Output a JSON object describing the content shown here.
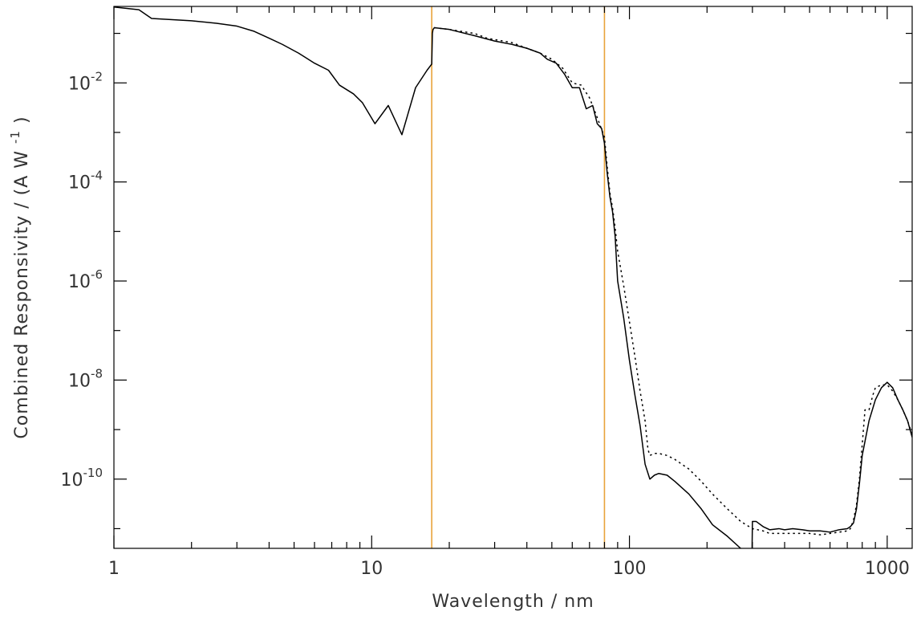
{
  "chart_data": {
    "type": "line",
    "title": "",
    "xlabel": "Wavelength / nm",
    "ylabel": {
      "prefix": "Combined Responsivity / (A W",
      "exponent": "-1",
      "suffix": ")"
    },
    "xscale": "log",
    "yscale": "log",
    "xlim": [
      1,
      1250
    ],
    "ylim": [
      4e-12,
      0.35
    ],
    "x_ticks": [
      {
        "value": 1,
        "label": "1"
      },
      {
        "value": 10,
        "label": "10"
      },
      {
        "value": 100,
        "label": "100"
      },
      {
        "value": 1000,
        "label": "1000"
      }
    ],
    "y_ticks": [
      {
        "value": 0.01,
        "base": "10",
        "exp": "-2"
      },
      {
        "value": 0.0001,
        "base": "10",
        "exp": "-4"
      },
      {
        "value": 1e-06,
        "base": "10",
        "exp": "-6"
      },
      {
        "value": 1e-08,
        "base": "10",
        "exp": "-8"
      },
      {
        "value": 1e-10,
        "base": "10",
        "exp": "-10"
      }
    ],
    "y_minor_ticks": [
      0.1,
      0.001,
      1e-05,
      1e-07,
      1e-09,
      1e-11
    ],
    "grid": false,
    "vlines": [
      {
        "x": 17.1,
        "color": "#e8a33a"
      },
      {
        "x": 80,
        "color": "#e8a33a"
      }
    ],
    "series": [
      {
        "style": "solid",
        "color": "#000000",
        "x": [
          1,
          1.25,
          1.4,
          2,
          2.5,
          3,
          3.5,
          4,
          4.5,
          5.2,
          6,
          6.8,
          7.5,
          8.5,
          9.2,
          10.3,
          11.6,
          13.1,
          14.8,
          16.4,
          17.1,
          17.2,
          17.3,
          17.5,
          20,
          25,
          30,
          35,
          40,
          45,
          48,
          52,
          56,
          60,
          64,
          68,
          72,
          75,
          78,
          80,
          82,
          84,
          86,
          88,
          90,
          95,
          100,
          105,
          110,
          115,
          120,
          125,
          130,
          140,
          150,
          170,
          190,
          210,
          240,
          270,
          290,
          299,
          300,
          310,
          330,
          350,
          380,
          400,
          430,
          470,
          500,
          550,
          600,
          650,
          700,
          720,
          740,
          760,
          780,
          800,
          850,
          900,
          950,
          1000,
          1050,
          1100,
          1150,
          1200,
          1250
        ],
        "y": [
          0.34,
          0.3,
          0.2,
          0.18,
          0.16,
          0.14,
          0.11,
          0.08,
          0.06,
          0.04,
          0.025,
          0.018,
          0.009,
          0.006,
          0.004,
          0.0015,
          0.0035,
          0.0009,
          0.008,
          0.018,
          0.024,
          0.1,
          0.12,
          0.13,
          0.12,
          0.09,
          0.07,
          0.06,
          0.05,
          0.04,
          0.03,
          0.025,
          0.015,
          0.008,
          0.008,
          0.003,
          0.0035,
          0.0015,
          0.0012,
          0.0006,
          0.00015,
          5e-05,
          2.5e-05,
          8e-06,
          1e-06,
          1.8e-07,
          2.5e-08,
          5e-09,
          1.2e-09,
          2e-10,
          1e-10,
          1.2e-10,
          1.3e-10,
          1.2e-10,
          9e-11,
          5e-11,
          2.5e-11,
          1.2e-11,
          7e-12,
          4e-12,
          3.5e-12,
          3.5e-12,
          1.4e-11,
          1.4e-11,
          1.1e-11,
          9.5e-12,
          1e-11,
          9.5e-12,
          1e-11,
          9.5e-12,
          9e-12,
          9e-12,
          8.5e-12,
          9.5e-12,
          1e-11,
          1.1e-11,
          1.3e-11,
          2.5e-11,
          8e-11,
          3e-10,
          1.5e-09,
          4e-09,
          7e-09,
          9e-09,
          7e-09,
          4e-09,
          2.5e-09,
          1.5e-09,
          7e-10
        ]
      },
      {
        "style": "dotted",
        "color": "#000000",
        "x": [
          17.5,
          20,
          25,
          28,
          30,
          35,
          40,
          45,
          50,
          55,
          60,
          65,
          70,
          75,
          80,
          82,
          84,
          86,
          88,
          90,
          95,
          100,
          105,
          110,
          115,
          118,
          120,
          125,
          130,
          140,
          150,
          170,
          190,
          210,
          240,
          270,
          300,
          330,
          350,
          400,
          450,
          500,
          550,
          600,
          650,
          700,
          720,
          740,
          760,
          780,
          800,
          820,
          850,
          880,
          900,
          950,
          1000,
          1050,
          1100,
          1150,
          1200,
          1250
        ],
        "y": [
          0.13,
          0.12,
          0.1,
          0.08,
          0.075,
          0.065,
          0.05,
          0.04,
          0.03,
          0.02,
          0.01,
          0.009,
          0.005,
          0.002,
          0.0008,
          0.0002,
          6e-05,
          3e-05,
          1.2e-05,
          4e-06,
          8e-07,
          1.5e-07,
          3e-08,
          6e-09,
          1.5e-09,
          4e-10,
          3e-10,
          3.3e-10,
          3.3e-10,
          3e-10,
          2.5e-10,
          1.6e-10,
          9e-11,
          5e-11,
          2.5e-11,
          1.4e-11,
          1e-11,
          9e-12,
          8e-12,
          8e-12,
          8e-12,
          8e-12,
          7.5e-12,
          8e-12,
          8.5e-12,
          9e-12,
          1e-11,
          1.5e-11,
          3e-11,
          1e-10,
          5e-10,
          2.5e-09,
          2.5e-09,
          5e-09,
          7e-09,
          8e-09,
          8e-09,
          6e-09,
          4e-09,
          2.5e-09,
          1.5e-09,
          8e-10
        ]
      }
    ]
  }
}
